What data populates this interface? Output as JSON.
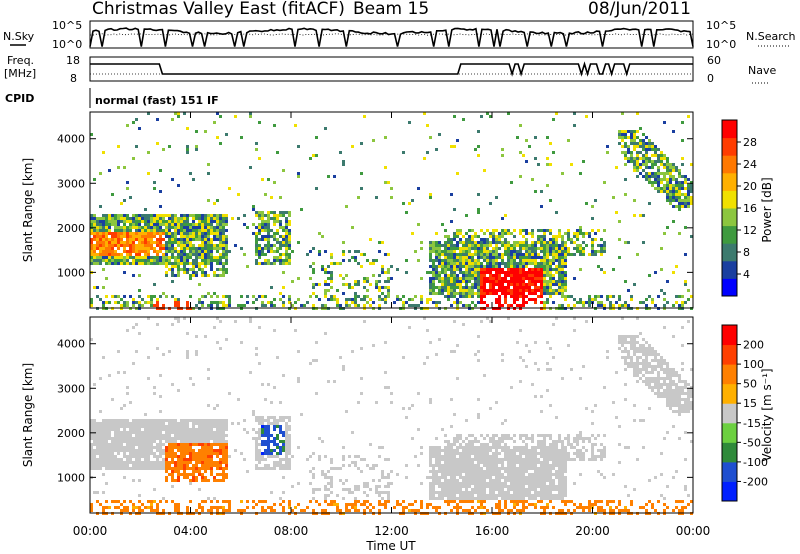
{
  "header": {
    "title": "Christmas Valley East (fitACF)",
    "beam": "Beam 15",
    "date": "08/Jun/2011"
  },
  "top_panel_labels": {
    "nsky": "N.Sky",
    "nsearch": "N.Search",
    "freq_line1": "Freq.",
    "freq_line2": "[MHz]",
    "nave": "Nave",
    "cpid": "CPID",
    "cpid_value": "normal (fast) 151 IF"
  },
  "noise_axis": {
    "left_ticks": [
      "10^5",
      "10^0"
    ],
    "right_ticks": [
      "10^5",
      "10^0"
    ]
  },
  "freq_axis": {
    "left_ticks": [
      "18",
      "8"
    ],
    "right_ticks": [
      "60",
      "0"
    ]
  },
  "colors": {
    "power": [
      "#0000ff",
      "#1a3fa0",
      "#3c7a6e",
      "#3f9a3f",
      "#8cc63f",
      "#f0e000",
      "#ffb000",
      "#ff7800",
      "#ff3c00",
      "#ff0000"
    ],
    "velocity": [
      "#0020ff",
      "#1f4fd0",
      "#2f8a3a",
      "#6cd040",
      "#c8c8c8",
      "#ffb000",
      "#ff8000",
      "#ff4000",
      "#ff0000"
    ]
  },
  "chart_data": [
    {
      "type": "heatmap",
      "title": "",
      "xlabel": "Time UT",
      "ylabel": "Slant Range [km]",
      "xlim": [
        0,
        24
      ],
      "ylim": [
        200,
        4600
      ],
      "x_ticks": [
        "00:00",
        "04:00",
        "08:00",
        "12:00",
        "16:00",
        "20:00",
        "00:00"
      ],
      "y_ticks": [
        "1000",
        "2000",
        "3000",
        "4000"
      ],
      "colorbar": {
        "label": "Power [dB]",
        "ticks": [
          "4",
          "8",
          "12",
          "16",
          "20",
          "24",
          "28"
        ],
        "range": [
          0,
          30
        ]
      }
    },
    {
      "type": "heatmap",
      "title": "",
      "xlabel": "Time UT",
      "ylabel": "Slant Range [km]",
      "xlim": [
        0,
        24
      ],
      "ylim": [
        200,
        4600
      ],
      "x_ticks": [
        "00:00",
        "04:00",
        "08:00",
        "12:00",
        "16:00",
        "20:00",
        "00:00"
      ],
      "y_ticks": [
        "1000",
        "2000",
        "3000",
        "4000"
      ],
      "colorbar": {
        "label": "Velocity [m s⁻¹]",
        "ticks": [
          "200",
          "100",
          "50",
          "15",
          "-15",
          "-50",
          "-100",
          "-200"
        ],
        "range": [
          -250,
          250
        ]
      }
    }
  ]
}
